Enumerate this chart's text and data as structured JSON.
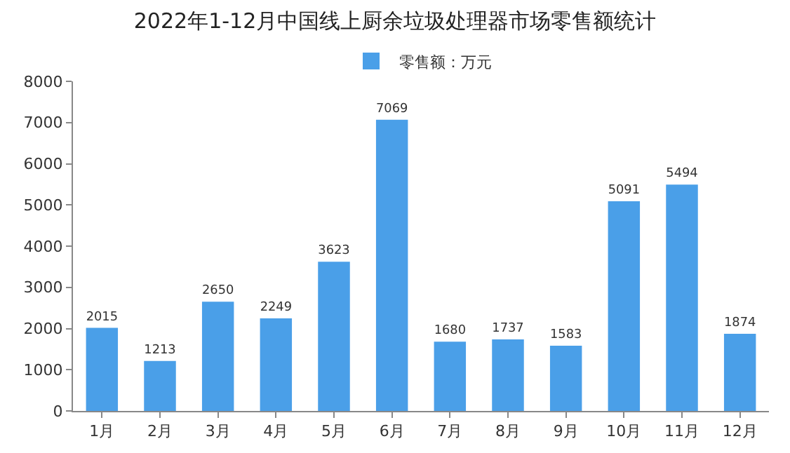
{
  "chart_data": {
    "type": "bar",
    "title": "2022年1-12月中国线上厨余垃圾处理器市场零售额统计",
    "categories": [
      "1月",
      "2月",
      "3月",
      "4月",
      "5月",
      "6月",
      "7月",
      "8月",
      "9月",
      "10月",
      "11月",
      "12月"
    ],
    "series": [
      {
        "name": "零售额：万元",
        "color": "#4a9fe8",
        "values": [
          2015,
          1213,
          2650,
          2249,
          3623,
          7069,
          1680,
          1737,
          1583,
          5091,
          5494,
          1874
        ]
      }
    ],
    "ylim": [
      0,
      8000
    ],
    "yticks": [
      0,
      1000,
      2000,
      3000,
      4000,
      5000,
      6000,
      7000,
      8000
    ],
    "grid": false,
    "legend": "top",
    "data_labels": true
  }
}
